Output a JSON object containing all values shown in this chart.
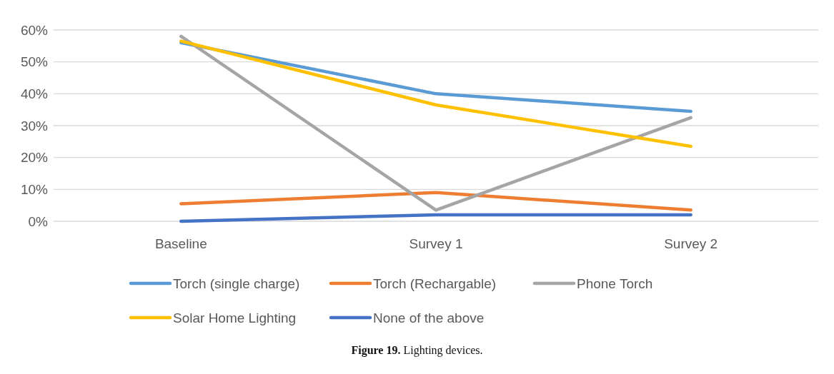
{
  "chart_data": {
    "type": "line",
    "title": "Figure 19. Lighting devices.",
    "categories": [
      "Baseline",
      "Survey 1",
      "Survey 2"
    ],
    "series": [
      {
        "name": "Torch (single charge)",
        "color": "#5b9bd5",
        "values": [
          56,
          40,
          34.5
        ]
      },
      {
        "name": "Torch (Rechargable)",
        "color": "#ed7d31",
        "values": [
          5.5,
          9,
          3.5
        ]
      },
      {
        "name": "Phone Torch",
        "color": "#a5a5a5",
        "values": [
          58,
          3.5,
          32.5
        ]
      },
      {
        "name": "Solar Home Lighting",
        "color": "#ffc000",
        "values": [
          56.5,
          36.5,
          23.5
        ]
      },
      {
        "name": "None of the above",
        "color": "#4472c4",
        "values": [
          0,
          2,
          2
        ]
      }
    ],
    "ylim": [
      0,
      60
    ],
    "yticks": [
      {
        "value": 0,
        "label": "0%"
      },
      {
        "value": 10,
        "label": "10%"
      },
      {
        "value": 20,
        "label": "20%"
      },
      {
        "value": 30,
        "label": "30%"
      },
      {
        "value": 40,
        "label": "40%"
      },
      {
        "value": 50,
        "label": "50%"
      },
      {
        "value": 60,
        "label": "60%"
      }
    ],
    "grid": "y",
    "legend": "bottom",
    "marker": "none",
    "line_style": "solid"
  }
}
